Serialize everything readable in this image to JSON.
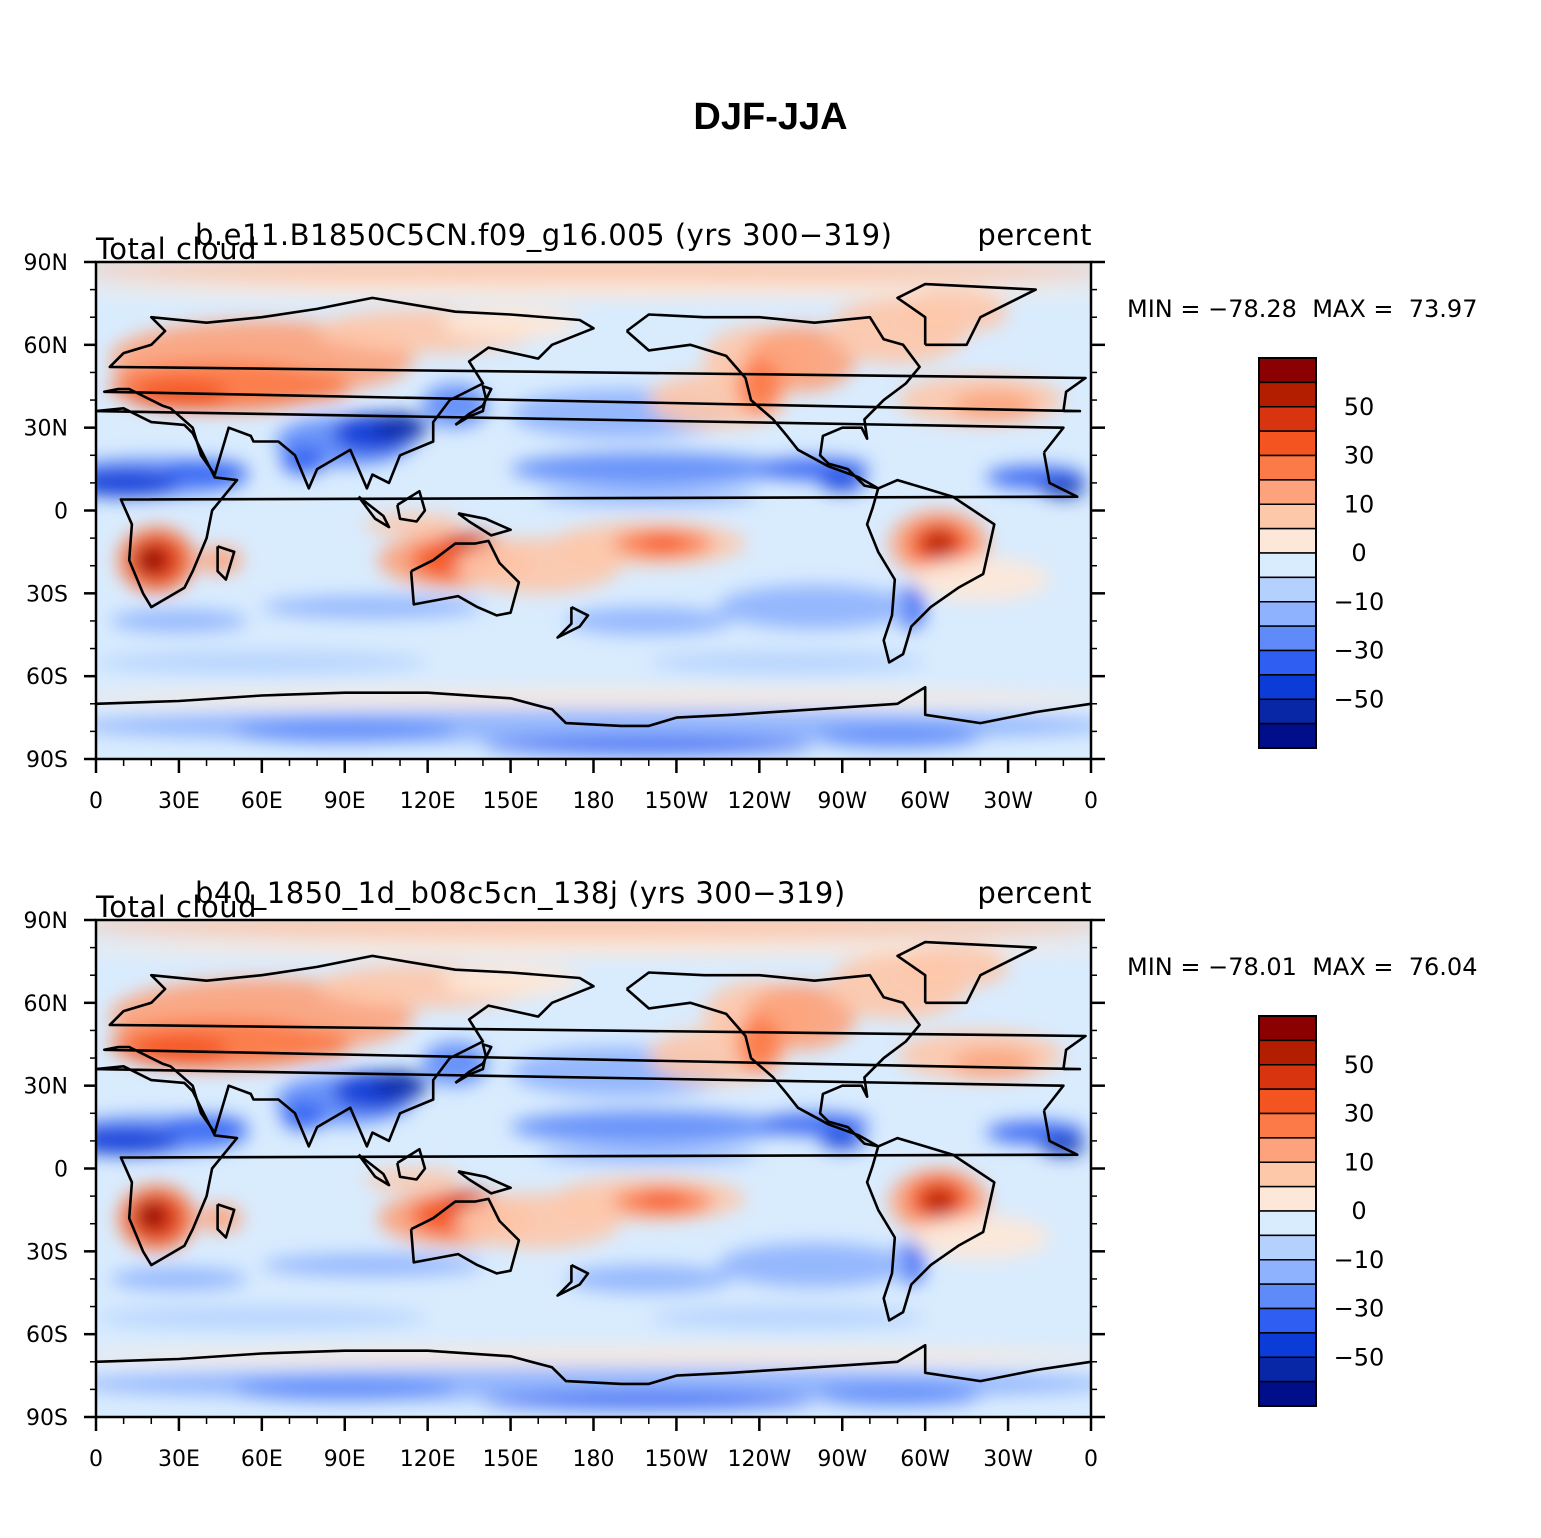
{
  "title": "DJF-JJA",
  "panels": [
    {
      "variable": "Total cloud",
      "case": "b.e11.B1850C5CN.f09_g16.005 (yrs 300−319)",
      "units": "percent",
      "min_label": "MIN = −78.28",
      "max_label": "MAX =  73.97"
    },
    {
      "variable": "Total cloud",
      "case": "b40_1850_1d_b08c5cn_138j (yrs 300−319)",
      "units": "percent",
      "min_label": "MIN = −78.01",
      "max_label": "MAX =  76.04"
    }
  ],
  "axes": {
    "lat_ticks": [
      "90N",
      "60N",
      "30N",
      "0",
      "30S",
      "60S",
      "90S"
    ],
    "lon_ticks": [
      "0",
      "30E",
      "60E",
      "90E",
      "120E",
      "150E",
      "180",
      "150W",
      "120W",
      "90W",
      "60W",
      "30W",
      "0"
    ]
  },
  "colorbar": {
    "labels": [
      "50",
      "30",
      "10",
      "0",
      "−10",
      "−30",
      "−50"
    ],
    "colors": [
      "#8b0000",
      "#b31d00",
      "#d83410",
      "#f4541f",
      "#fb7a48",
      "#fca27c",
      "#fdc7aa",
      "#fde7d8",
      "#d9ecfe",
      "#b4d1fe",
      "#8eb2fd",
      "#5f8bf9",
      "#2f5ef2",
      "#0c3cd8",
      "#0727a7",
      "#010e89"
    ]
  },
  "map_colors": {
    "ocean_base": "#d9ecfe",
    "coast": "#000000"
  }
}
